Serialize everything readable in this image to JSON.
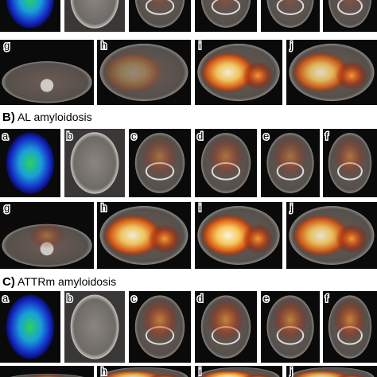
{
  "sections": [
    {
      "panels_bottom": [
        "g",
        "h",
        "i",
        "j"
      ]
    },
    {
      "letter": "B)",
      "heading": "AL amyloidosis",
      "panels_top": [
        "a",
        "b",
        "c",
        "d",
        "e",
        "f"
      ],
      "panels_bottom": [
        "g",
        "h",
        "i",
        "j"
      ]
    },
    {
      "letter": "C)",
      "heading": "ATTRm amyloidosis",
      "panels_top": [
        "a",
        "b",
        "c",
        "d",
        "e",
        "f"
      ],
      "panels_bottom": [
        "h",
        "i",
        "j"
      ]
    }
  ]
}
